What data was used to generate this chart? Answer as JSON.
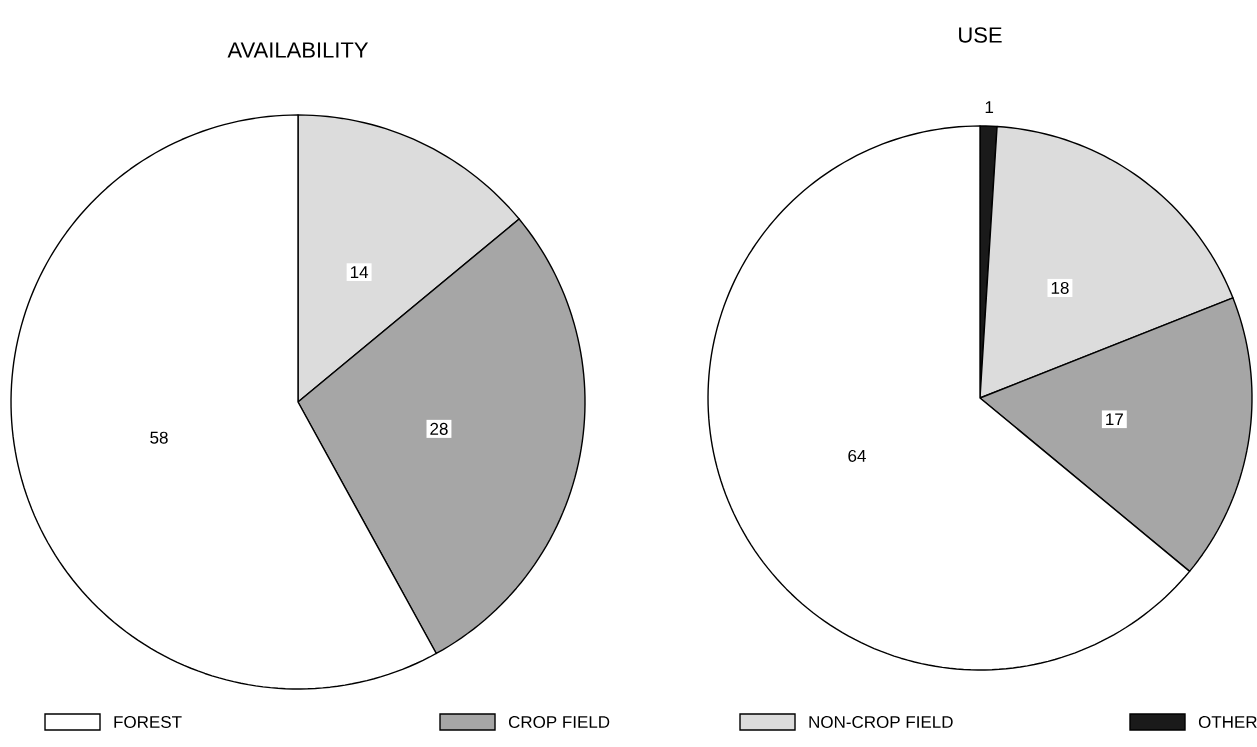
{
  "chart_data": [
    {
      "type": "pie",
      "title": "AVAILABILITY",
      "categories": [
        "NON-CROP FIELD",
        "CROP FIELD",
        "FOREST"
      ],
      "values": [
        14,
        28,
        58
      ],
      "colors": [
        "#dcdcdc",
        "#a6a6a6",
        "#ffffff"
      ],
      "data_labels": true,
      "legend": "bottom"
    },
    {
      "type": "pie",
      "title": "USE",
      "categories": [
        "OTHER",
        null,
        null,
        null
      ],
      "values": [
        1,
        18,
        17,
        64
      ],
      "colors": [
        "#1a1a1a",
        "#dcdcdc",
        "#a6a6a6",
        "#ffffff"
      ],
      "data_labels": true,
      "legend": "bottom"
    }
  ]
}
